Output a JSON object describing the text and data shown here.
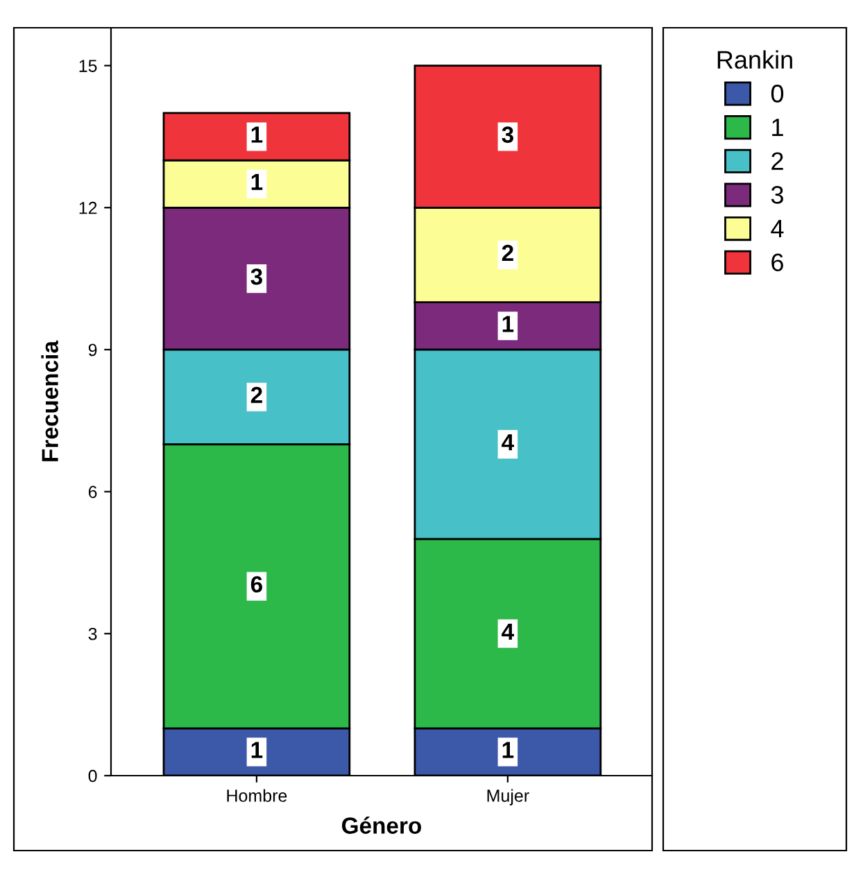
{
  "chart_data": {
    "type": "bar",
    "stacked": true,
    "xlabel": "Género",
    "ylabel": "Frecuencia",
    "legend_title": "Rankin",
    "legend": "right",
    "grid": false,
    "data_labels": true,
    "categories": [
      "Hombre",
      "Mujer"
    ],
    "ylim": [
      0,
      15.8
    ],
    "yticks": [
      0,
      3,
      6,
      9,
      12,
      15
    ],
    "series": [
      {
        "name": "0",
        "color": "#3c58a8",
        "values": [
          1,
          1
        ]
      },
      {
        "name": "1",
        "color": "#2db84a",
        "values": [
          6,
          4
        ]
      },
      {
        "name": "2",
        "color": "#48c0c8",
        "values": [
          2,
          4
        ]
      },
      {
        "name": "3",
        "color": "#7b2a7c",
        "values": [
          3,
          1
        ]
      },
      {
        "name": "4",
        "color": "#fdfd96",
        "values": [
          1,
          2
        ]
      },
      {
        "name": "6",
        "color": "#f0343c",
        "values": [
          1,
          3
        ]
      }
    ]
  }
}
